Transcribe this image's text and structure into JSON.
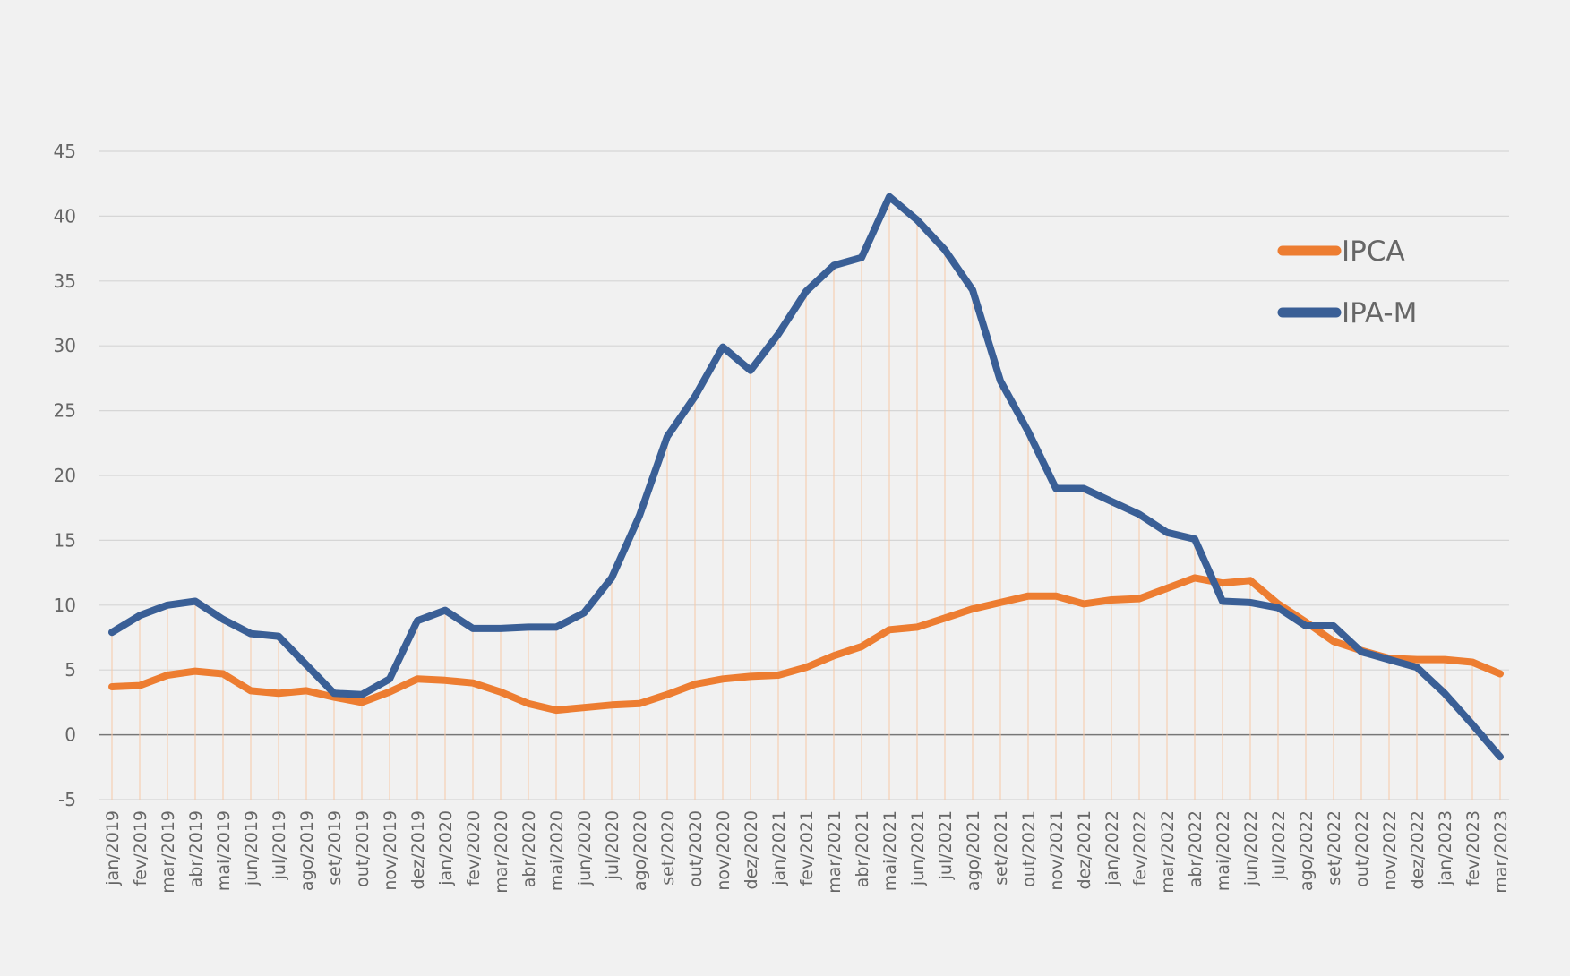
{
  "chart_data": {
    "type": "line",
    "title": "",
    "xlabel": "",
    "ylabel": "",
    "ylim": [
      -5,
      45
    ],
    "yticks": [
      -5,
      0,
      5,
      10,
      15,
      20,
      25,
      30,
      35,
      40,
      45
    ],
    "grid": true,
    "legend_position": "top-right",
    "categories": [
      "jan/2019",
      "fev/2019",
      "mar/2019",
      "abr/2019",
      "mai/2019",
      "jun/2019",
      "jul/2019",
      "ago/2019",
      "set/2019",
      "out/2019",
      "nov/2019",
      "dez/2019",
      "jan/2020",
      "fev/2020",
      "mar/2020",
      "abr/2020",
      "mai/2020",
      "jun/2020",
      "jul/2020",
      "ago/2020",
      "set/2020",
      "out/2020",
      "nov/2020",
      "dez/2020",
      "jan/2021",
      "fev/2021",
      "mar/2021",
      "abr/2021",
      "mai/2021",
      "jun/2021",
      "jul/2021",
      "ago/2021",
      "set/2021",
      "out/2021",
      "nov/2021",
      "dez/2021",
      "jan/2022",
      "fev/2022",
      "mar/2022",
      "abr/2022",
      "mai/2022",
      "jun/2022",
      "jul/2022",
      "ago/2022",
      "set/2022",
      "out/2022",
      "nov/2022",
      "dez/2022",
      "jan/2023",
      "fev/2023",
      "mar/2023"
    ],
    "series": [
      {
        "name": "IPCA",
        "color": "#ed7d31",
        "values": [
          3.7,
          3.8,
          4.6,
          4.9,
          4.7,
          3.4,
          3.2,
          3.4,
          2.9,
          2.5,
          3.3,
          4.3,
          4.2,
          4.0,
          3.3,
          2.4,
          1.9,
          2.1,
          2.3,
          2.4,
          3.1,
          3.9,
          4.3,
          4.5,
          4.6,
          5.2,
          6.1,
          6.8,
          8.1,
          8.3,
          9.0,
          9.7,
          10.2,
          10.7,
          10.7,
          10.1,
          10.4,
          10.5,
          11.3,
          12.1,
          11.7,
          11.9,
          10.1,
          8.7,
          7.2,
          6.5,
          5.9,
          5.8,
          5.8,
          5.6,
          4.7
        ]
      },
      {
        "name": "IPA-M",
        "color": "#3a5f96",
        "values": [
          7.9,
          9.2,
          10.0,
          10.3,
          8.9,
          7.8,
          7.6,
          5.4,
          3.2,
          3.1,
          4.3,
          8.8,
          9.6,
          8.2,
          8.2,
          8.3,
          8.3,
          9.4,
          12.1,
          16.9,
          23.0,
          26.1,
          29.9,
          28.1,
          30.9,
          34.2,
          36.2,
          36.8,
          41.5,
          39.7,
          37.4,
          34.3,
          27.3,
          23.4,
          19.0,
          19.0,
          18.0,
          17.0,
          15.6,
          15.1,
          10.3,
          10.2,
          9.8,
          8.4,
          8.4,
          6.4,
          5.8,
          5.2,
          3.2,
          0.8,
          -1.7
        ]
      }
    ]
  }
}
